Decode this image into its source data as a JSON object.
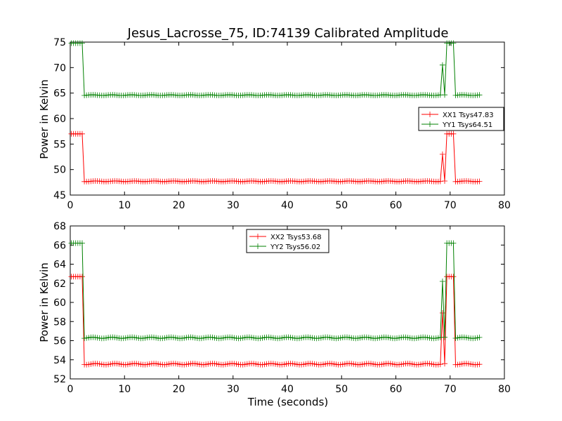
{
  "title": "Jesus_Lacrosse_75, ID:74139 Calibrated Amplitude",
  "chart_data": [
    {
      "type": "line",
      "title": "Jesus_Lacrosse_75, ID:74139 Calibrated Amplitude",
      "xlabel": "",
      "ylabel": "Power in Kelvin",
      "xlim": [
        0,
        80
      ],
      "ylim": [
        45,
        75
      ],
      "xticks": [
        "0",
        "10",
        "20",
        "30",
        "40",
        "50",
        "60",
        "70",
        "80"
      ],
      "yticks": [
        "45",
        "50",
        "55",
        "60",
        "65",
        "70",
        "75"
      ],
      "legend_position": "center-right",
      "x_range": [
        0.2,
        75.4
      ],
      "n_points": 189,
      "series": [
        {
          "name": "XX1 Tsys47.83",
          "color": "#ff0000",
          "marker": "+",
          "baseline": 47.7,
          "high": 57.0,
          "high_segments": [
            [
              0.2,
              2.4
            ],
            [
              69.4,
              70.8
            ]
          ],
          "transitions": [
            [
              2.8,
              52.0
            ],
            [
              68.6,
              53.0
            ],
            [
              71.2,
              55.5
            ],
            [
              71.6,
              51.3
            ]
          ]
        },
        {
          "name": "YY1 Tsys64.51",
          "color": "#008000",
          "marker": "+",
          "baseline": 64.6,
          "high": 74.8,
          "high_segments": [
            [
              0.2,
              2.4
            ],
            [
              69.4,
              70.8
            ]
          ],
          "transitions": [
            [
              2.8,
              69.3
            ],
            [
              68.6,
              70.5
            ],
            [
              71.2,
              73.3
            ],
            [
              71.6,
              68.7
            ]
          ]
        }
      ]
    },
    {
      "type": "line",
      "title": "",
      "xlabel": "Time (seconds)",
      "ylabel": "Power in Kelvin",
      "xlim": [
        0,
        80
      ],
      "ylim": [
        52,
        68
      ],
      "xticks": [
        "0",
        "10",
        "20",
        "30",
        "40",
        "50",
        "60",
        "70",
        "80"
      ],
      "yticks": [
        "52",
        "54",
        "56",
        "58",
        "60",
        "62",
        "64",
        "66",
        "68"
      ],
      "legend_position": "top-center",
      "x_range": [
        0.2,
        75.4
      ],
      "n_points": 189,
      "series": [
        {
          "name": "XX2 Tsys53.68",
          "color": "#ff0000",
          "marker": "+",
          "baseline": 53.55,
          "high": 62.7,
          "high_segments": [
            [
              0.2,
              2.4
            ],
            [
              69.4,
              70.8
            ]
          ],
          "transitions": [
            [
              2.8,
              58.0
            ],
            [
              68.6,
              58.9
            ],
            [
              71.2,
              61.4
            ],
            [
              71.6,
              57.1
            ]
          ]
        },
        {
          "name": "YY2 Tsys56.02",
          "color": "#008000",
          "marker": "+",
          "baseline": 56.3,
          "high": 66.2,
          "high_segments": [
            [
              0.2,
              2.4
            ],
            [
              69.4,
              70.8
            ]
          ],
          "transitions": [
            [
              2.8,
              61.0
            ],
            [
              68.6,
              62.2
            ],
            [
              71.2,
              64.7
            ],
            [
              71.6,
              60.3
            ]
          ]
        }
      ]
    }
  ]
}
